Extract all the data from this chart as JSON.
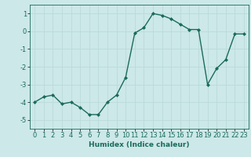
{
  "x": [
    0,
    1,
    2,
    3,
    4,
    5,
    6,
    7,
    8,
    9,
    10,
    11,
    12,
    13,
    14,
    15,
    16,
    17,
    18,
    19,
    20,
    21,
    22,
    23
  ],
  "y": [
    -4.0,
    -3.7,
    -3.6,
    -4.1,
    -4.0,
    -4.3,
    -4.7,
    -4.7,
    -4.0,
    -3.6,
    -2.6,
    -0.1,
    0.2,
    1.0,
    0.9,
    0.7,
    0.4,
    0.1,
    0.1,
    -3.0,
    -2.1,
    -1.6,
    -0.15,
    -0.15
  ],
  "line_color": "#1a6b5a",
  "marker": "D",
  "marker_size": 2.0,
  "bg_color": "#cce8e8",
  "grid_color": "#b8d8d8",
  "xlabel": "Humidex (Indice chaleur)",
  "xlim": [
    -0.5,
    23.5
  ],
  "ylim": [
    -5.5,
    1.5
  ],
  "yticks": [
    -5,
    -4,
    -3,
    -2,
    -1,
    0,
    1
  ],
  "xticks": [
    0,
    1,
    2,
    3,
    4,
    5,
    6,
    7,
    8,
    9,
    10,
    11,
    12,
    13,
    14,
    15,
    16,
    17,
    18,
    19,
    20,
    21,
    22,
    23
  ],
  "xlabel_fontsize": 6.5,
  "tick_fontsize": 6.0,
  "line_width": 1.0
}
